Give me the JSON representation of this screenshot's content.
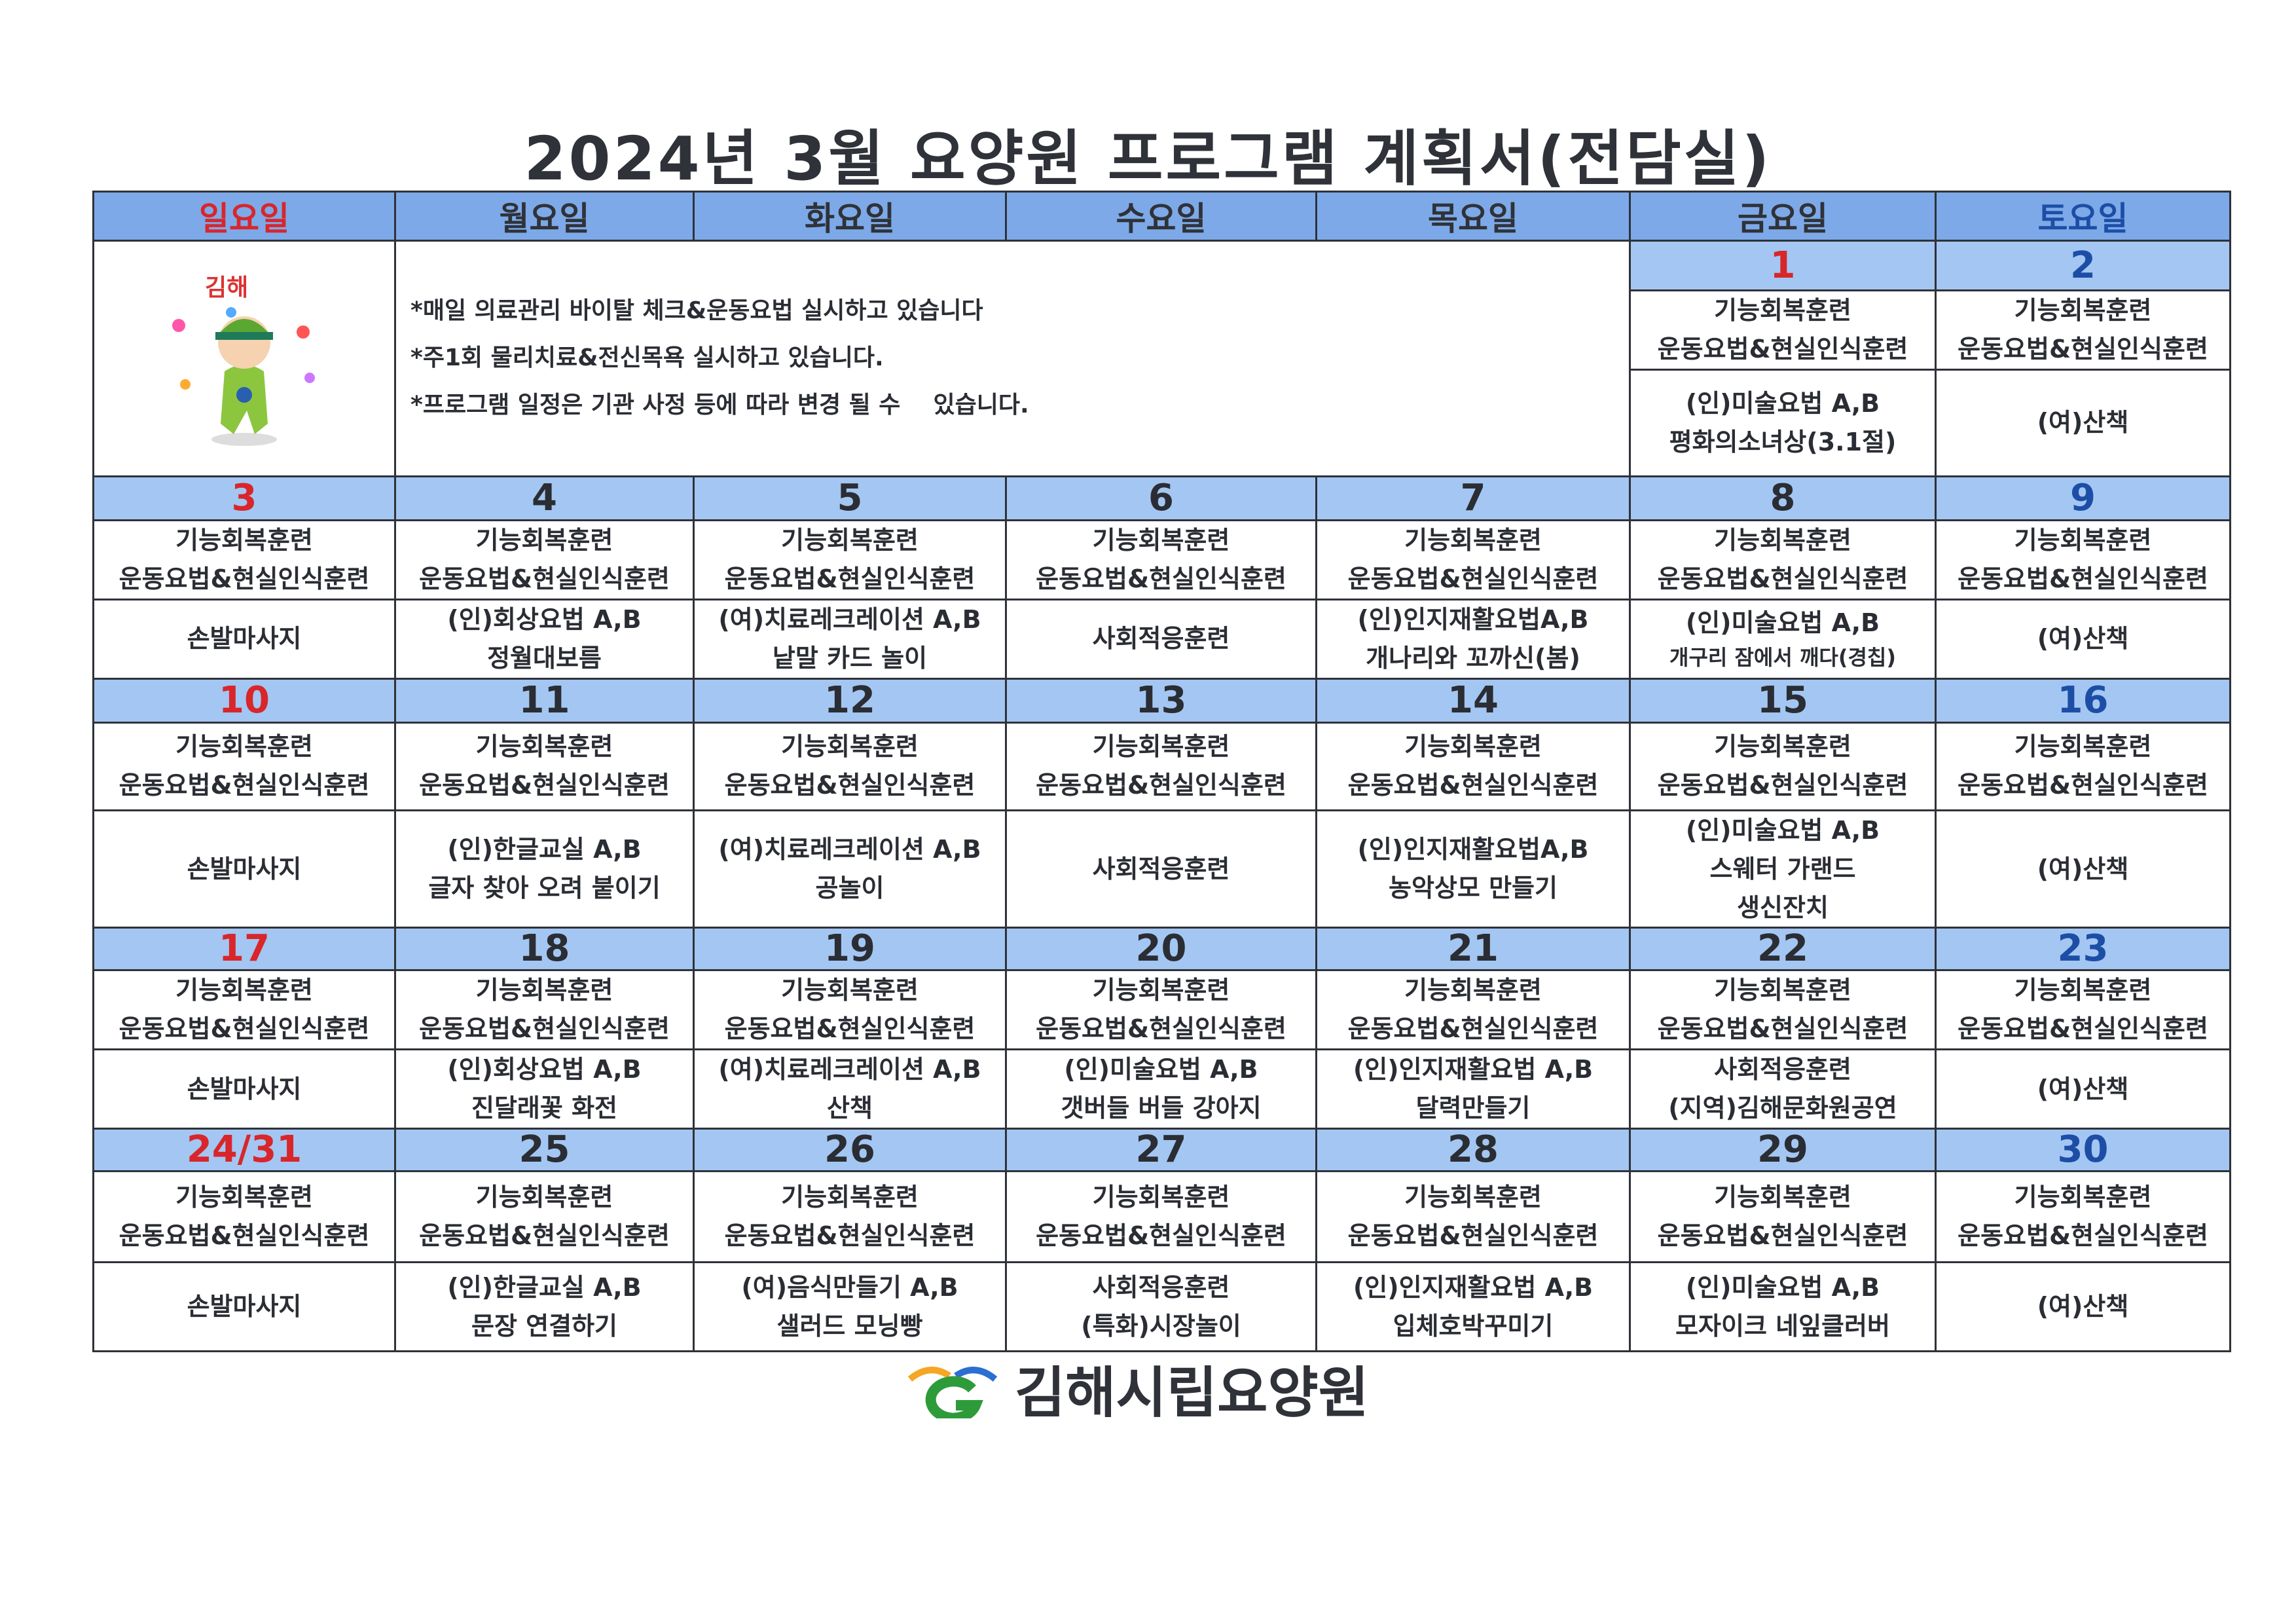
{
  "title": "2024년 3월 요양원 프로그램 계획서(전담실)",
  "colors": {
    "header_bg": "#7da9e8",
    "date_bg": "#a4c6f2",
    "sunday": "#d8262b",
    "saturday": "#1d4ea6"
  },
  "weekdays": [
    "일요일",
    "월요일",
    "화요일",
    "수요일",
    "목요일",
    "금요일",
    "토요일"
  ],
  "mascot_logo_text": "김해",
  "notices": [
    "*매일 의료관리 바이탈 체크&운동요법 실시하고 있습니다",
    "*주1회 물리치료&전신목욕 실시하고 있습니다.",
    "*프로그램 일정은 기관 사정 등에 따라 변경 될 수    있습니다."
  ],
  "week1": [
    {
      "date": "1",
      "act1": [
        "기능회복훈련",
        "운동요법&현실인식훈련"
      ],
      "act2": [
        "(인)미술요법 A,B",
        "평화의소녀상(3.1절)"
      ]
    },
    {
      "date": "2",
      "act1": [
        "기능회복훈련",
        "운동요법&현실인식훈련"
      ],
      "act2": [
        "(여)산책"
      ]
    }
  ],
  "weeks": [
    [
      {
        "date": "3",
        "act1": [
          "기능회복훈련",
          "운동요법&현실인식훈련"
        ],
        "act2": [
          "손발마사지"
        ]
      },
      {
        "date": "4",
        "act1": [
          "기능회복훈련",
          "운동요법&현실인식훈련"
        ],
        "act2": [
          "(인)회상요법 A,B",
          "정월대보름"
        ]
      },
      {
        "date": "5",
        "act1": [
          "기능회복훈련",
          "운동요법&현실인식훈련"
        ],
        "act2": [
          "(여)치료레크레이션 A,B",
          "낱말 카드 놀이"
        ]
      },
      {
        "date": "6",
        "act1": [
          "기능회복훈련",
          "운동요법&현실인식훈련"
        ],
        "act2": [
          "사회적응훈련"
        ]
      },
      {
        "date": "7",
        "act1": [
          "기능회복훈련",
          "운동요법&현실인식훈련"
        ],
        "act2": [
          "(인)인지재활요법A,B",
          "개나리와 꼬까신(봄)"
        ]
      },
      {
        "date": "8",
        "act1": [
          "기능회복훈련",
          "운동요법&현실인식훈련"
        ],
        "act2": [
          "(인)미술요법 A,B",
          "개구리 잠에서 깨다(경칩)"
        ]
      },
      {
        "date": "9",
        "act1": [
          "기능회복훈련",
          "운동요법&현실인식훈련"
        ],
        "act2": [
          "(여)산책"
        ]
      }
    ],
    [
      {
        "date": "10",
        "act1": [
          "기능회복훈련",
          "운동요법&현실인식훈련"
        ],
        "act2": [
          "손발마사지"
        ]
      },
      {
        "date": "11",
        "act1": [
          "기능회복훈련",
          "운동요법&현실인식훈련"
        ],
        "act2": [
          "(인)한글교실 A,B",
          "글자 찾아 오려 붙이기"
        ]
      },
      {
        "date": "12",
        "act1": [
          "기능회복훈련",
          "운동요법&현실인식훈련"
        ],
        "act2": [
          "(여)치료레크레이션 A,B",
          "공놀이"
        ]
      },
      {
        "date": "13",
        "act1": [
          "기능회복훈련",
          "운동요법&현실인식훈련"
        ],
        "act2": [
          "사회적응훈련"
        ]
      },
      {
        "date": "14",
        "act1": [
          "기능회복훈련",
          "운동요법&현실인식훈련"
        ],
        "act2": [
          "(인)인지재활요법A,B",
          "농악상모 만들기"
        ]
      },
      {
        "date": "15",
        "act1": [
          "기능회복훈련",
          "운동요법&현실인식훈련"
        ],
        "act2": [
          "(인)미술요법 A,B",
          "스웨터 가랜드",
          "생신잔치"
        ]
      },
      {
        "date": "16",
        "act1": [
          "기능회복훈련",
          "운동요법&현실인식훈련"
        ],
        "act2": [
          "(여)산책"
        ]
      }
    ],
    [
      {
        "date": "17",
        "act1": [
          "기능회복훈련",
          "운동요법&현실인식훈련"
        ],
        "act2": [
          "손발마사지"
        ]
      },
      {
        "date": "18",
        "act1": [
          "기능회복훈련",
          "운동요법&현실인식훈련"
        ],
        "act2": [
          "(인)회상요법 A,B",
          "진달래꽃 화전"
        ]
      },
      {
        "date": "19",
        "act1": [
          "기능회복훈련",
          "운동요법&현실인식훈련"
        ],
        "act2": [
          "(여)치료레크레이션 A,B",
          "산책"
        ]
      },
      {
        "date": "20",
        "act1": [
          "기능회복훈련",
          "운동요법&현실인식훈련"
        ],
        "act2": [
          "(인)미술요법 A,B",
          "갯버들 버들 강아지"
        ]
      },
      {
        "date": "21",
        "act1": [
          "기능회복훈련",
          "운동요법&현실인식훈련"
        ],
        "act2": [
          "(인)인지재활요법 A,B",
          "달력만들기"
        ]
      },
      {
        "date": "22",
        "act1": [
          "기능회복훈련",
          "운동요법&현실인식훈련"
        ],
        "act2": [
          "사회적응훈련",
          "(지역)김해문화원공연"
        ]
      },
      {
        "date": "23",
        "act1": [
          "기능회복훈련",
          "운동요법&현실인식훈련"
        ],
        "act2": [
          "(여)산책"
        ]
      }
    ],
    [
      {
        "date": "24/31",
        "act1": [
          "기능회복훈련",
          "운동요법&현실인식훈련"
        ],
        "act2": [
          "손발마사지"
        ]
      },
      {
        "date": "25",
        "act1": [
          "기능회복훈련",
          "운동요법&현실인식훈련"
        ],
        "act2": [
          "(인)한글교실 A,B",
          "문장 연결하기"
        ]
      },
      {
        "date": "26",
        "act1": [
          "기능회복훈련",
          "운동요법&현실인식훈련"
        ],
        "act2": [
          "(여)음식만들기 A,B",
          "샐러드 모닝빵"
        ]
      },
      {
        "date": "27",
        "act1": [
          "기능회복훈련",
          "운동요법&현실인식훈련"
        ],
        "act2": [
          "사회적응훈련",
          "(특화)시장놀이"
        ]
      },
      {
        "date": "28",
        "act1": [
          "기능회복훈련",
          "운동요법&현실인식훈련"
        ],
        "act2": [
          "(인)인지재활요법 A,B",
          "입체호박꾸미기"
        ]
      },
      {
        "date": "29",
        "act1": [
          "기능회복훈련",
          "운동요법&현실인식훈련"
        ],
        "act2": [
          "(인)미술요법 A,B",
          "모자이크 네잎클러버"
        ]
      },
      {
        "date": "30",
        "act1": [
          "기능회복훈련",
          "운동요법&현실인식훈련"
        ],
        "act2": [
          "(여)산책"
        ]
      }
    ]
  ],
  "footer": {
    "org_name": "김해시립요양원"
  }
}
